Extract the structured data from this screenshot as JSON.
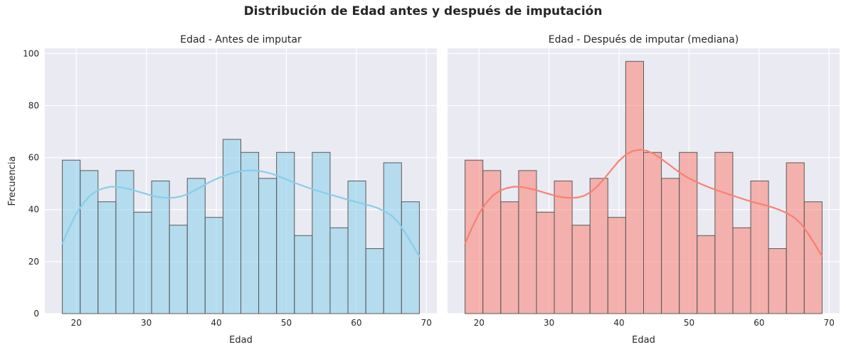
{
  "figure": {
    "suptitle": "Distribución de Edad antes y después de imputación"
  },
  "colors": {
    "panel_bg": "#eaeaf2",
    "grid": "#ffffff",
    "bar_edge": "#5a5a5a",
    "left_fill": "#87ceeb",
    "left_line": "#87ceeb",
    "right_fill": "#fa8072",
    "right_line": "#fa8072"
  },
  "chart_data": [
    {
      "type": "bar",
      "title": "Edad - Antes de imputar",
      "xlabel": "Edad",
      "ylabel": "Frecuencia",
      "xlim": [
        15.5,
        71.5
      ],
      "ylim": [
        0,
        102
      ],
      "xticks": [
        20,
        30,
        40,
        50,
        60,
        70
      ],
      "yticks": [
        0,
        20,
        40,
        60,
        80,
        100
      ],
      "grid": true,
      "bin_start": 18,
      "bin_width": 2.55,
      "values": [
        59,
        55,
        43,
        55,
        39,
        51,
        34,
        52,
        37,
        67,
        62,
        52,
        62,
        30,
        62,
        33,
        51,
        25,
        58,
        43
      ],
      "kde": {
        "x": [
          18,
          19,
          20,
          21,
          22,
          23,
          24,
          25,
          26,
          27,
          28,
          29,
          30,
          31,
          32,
          33,
          34,
          35,
          36,
          37,
          38,
          39,
          40,
          41,
          42,
          43,
          44,
          45,
          46,
          47,
          48,
          49,
          50,
          51,
          52,
          53,
          54,
          55,
          56,
          57,
          58,
          59,
          60,
          61,
          62,
          63,
          64,
          65,
          66,
          67,
          68,
          69
        ],
        "y": [
          27,
          33,
          38.5,
          42.5,
          45.5,
          47.3,
          48.3,
          48.8,
          48.7,
          48.2,
          47.6,
          46.8,
          46,
          45.2,
          44.7,
          44.5,
          44.6,
          45.1,
          46.1,
          47.5,
          49,
          50.5,
          51.8,
          52.9,
          53.8,
          54.5,
          55,
          55.1,
          54.9,
          54.4,
          53.7,
          52.7,
          51.6,
          50.5,
          49.5,
          48.5,
          47.6,
          46.8,
          46,
          45.2,
          44.4,
          43.6,
          42.9,
          42.2,
          41.5,
          40.6,
          39.4,
          37.8,
          35,
          31,
          26.5,
          22
        ]
      }
    },
    {
      "type": "bar",
      "title": "Edad - Después de imputar (mediana)",
      "xlabel": "Edad",
      "ylabel": "",
      "xlim": [
        15.5,
        71.5
      ],
      "ylim": [
        0,
        102
      ],
      "xticks": [
        20,
        30,
        40,
        50,
        60,
        70
      ],
      "yticks": [
        0,
        20,
        40,
        60,
        80,
        100
      ],
      "grid": true,
      "bin_start": 18,
      "bin_width": 2.55,
      "values": [
        59,
        55,
        43,
        55,
        39,
        51,
        34,
        52,
        37,
        97,
        62,
        52,
        62,
        30,
        62,
        33,
        51,
        25,
        58,
        43
      ],
      "kde": {
        "x": [
          18,
          19,
          20,
          21,
          22,
          23,
          24,
          25,
          26,
          27,
          28,
          29,
          30,
          31,
          32,
          33,
          34,
          35,
          36,
          37,
          38,
          39,
          40,
          41,
          42,
          43,
          44,
          45,
          46,
          47,
          48,
          49,
          50,
          51,
          52,
          53,
          54,
          55,
          56,
          57,
          58,
          59,
          60,
          61,
          62,
          63,
          64,
          65,
          66,
          67,
          68,
          69
        ],
        "y": [
          27,
          33,
          38.5,
          42.5,
          45.5,
          47.3,
          48.3,
          48.8,
          48.7,
          48.2,
          47.6,
          46.8,
          46,
          45.2,
          44.7,
          44.5,
          44.6,
          45.3,
          46.8,
          49.2,
          52.3,
          55.6,
          58.8,
          61.2,
          62.6,
          63,
          62.6,
          61.4,
          59.6,
          57.6,
          55.5,
          53.6,
          52,
          50.7,
          49.5,
          48.4,
          47.4,
          46.5,
          45.6,
          44.7,
          43.8,
          43,
          42.3,
          41.6,
          40.8,
          39.8,
          38.6,
          37,
          34.5,
          30.8,
          26.5,
          22
        ]
      }
    }
  ]
}
